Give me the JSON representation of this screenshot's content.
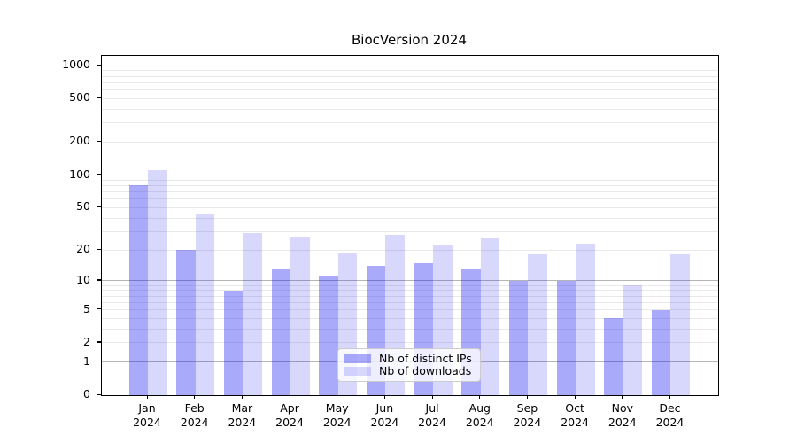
{
  "figure": {
    "title": "BiocVersion 2024"
  },
  "chart_data": {
    "type": "bar",
    "title": "BiocVersion 2024",
    "categories": [
      "Jan 2024",
      "Feb 2024",
      "Mar 2024",
      "Apr 2024",
      "May 2024",
      "Jun 2024",
      "Jul 2024",
      "Aug 2024",
      "Sep 2024",
      "Oct 2024",
      "Nov 2024",
      "Dec 2024"
    ],
    "series": [
      {
        "name": "Nb of distinct IPs",
        "color": "rgba(20,20,240,0.36)",
        "values": [
          80,
          20,
          8,
          13,
          11,
          14,
          15,
          13,
          10,
          10,
          4,
          5
        ]
      },
      {
        "name": "Nb of downloads",
        "color": "rgba(20,20,240,0.165)",
        "values": [
          110,
          43,
          29,
          27,
          19,
          28,
          22,
          26,
          18,
          23,
          9,
          18
        ]
      }
    ],
    "yscale": "log1p",
    "ylim": [
      0,
      1228
    ],
    "yticks": [
      1000,
      500,
      200,
      100,
      50,
      20,
      10,
      5,
      2,
      1,
      0
    ],
    "yticks_minor": [
      2,
      3,
      4,
      5,
      6,
      7,
      8,
      9,
      20,
      30,
      40,
      50,
      60,
      70,
      80,
      90,
      200,
      300,
      400,
      500,
      600,
      700,
      800,
      900
    ],
    "yticks_major_grid": [
      1,
      10,
      100,
      1000
    ],
    "grid": true,
    "legend_position": "lower center",
    "legend_entries": [
      "Nb of distinct IPs",
      "Nb of downloads"
    ]
  },
  "colors": {
    "grid_major": "#b5b5b5",
    "grid_minor": "#e9e9e9",
    "axis": "#000000",
    "bar_dark": "rgba(20,20,240,0.36)",
    "bar_light": "rgba(20,20,240,0.165)"
  }
}
